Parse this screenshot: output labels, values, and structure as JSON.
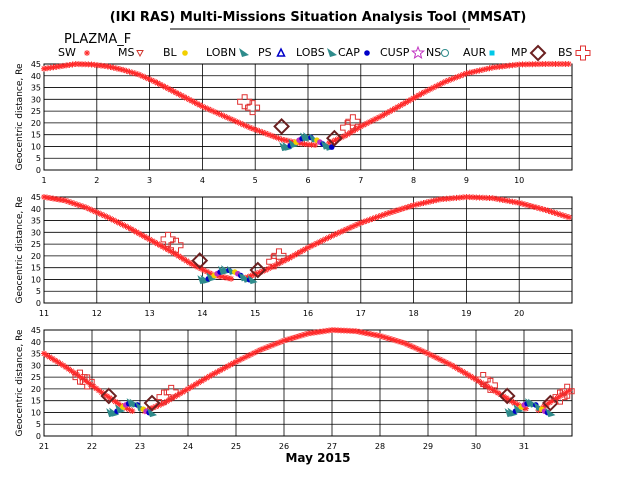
{
  "header": {
    "title": "(IKI RAS) Multi-Missions Situation Analysis Tool (MMSAT)",
    "subtitle": "PLAZMA_F",
    "footer": "May 2015"
  },
  "legend": [
    {
      "label": "SW",
      "symbol": "asterisk",
      "color": "#ff2a2a"
    },
    {
      "label": "MS",
      "symbol": "tri-down",
      "color": "#d0342c"
    },
    {
      "label": "BL",
      "symbol": "dot",
      "color": "#f2d000"
    },
    {
      "label": "LOBN",
      "symbol": "wedge",
      "color": "#2e8b8b"
    },
    {
      "label": "PS",
      "symbol": "tri-up",
      "color": "#0000c8"
    },
    {
      "label": "LOBS",
      "symbol": "wedge",
      "color": "#2e8b8b"
    },
    {
      "label": "CAP",
      "symbol": "dot",
      "color": "#0000c8"
    },
    {
      "label": "CUSP",
      "symbol": "star",
      "color": "#c030c0"
    },
    {
      "label": "NS",
      "symbol": "circle",
      "color": "#2e8b8b"
    },
    {
      "label": "AUR",
      "symbol": "square",
      "color": "#00c8e8"
    },
    {
      "label": "MP",
      "symbol": "diamond",
      "color": "#6b2020"
    },
    {
      "label": "BS",
      "symbol": "cross",
      "color": "#e03030"
    }
  ],
  "chart_data": [
    {
      "type": "scatter",
      "ylabel": "Geocentric distance, Re",
      "x_ticks": [
        "1",
        "2",
        "3",
        "4",
        "5",
        "6",
        "7",
        "8",
        "9",
        "10"
      ],
      "xlim": [
        1,
        11
      ],
      "y_ticks": [
        "0",
        "5",
        "10",
        "15",
        "20",
        "25",
        "30",
        "35",
        "40",
        "45"
      ],
      "ylim": [
        0,
        45
      ],
      "grid": true,
      "series": [
        {
          "x": [
            1.0,
            1.3,
            1.6,
            1.9,
            2.2,
            2.5,
            2.8,
            3.1,
            3.4,
            3.7,
            4.0,
            4.3,
            4.6,
            4.9,
            5.2,
            5.5,
            5.8,
            6.0,
            6.2
          ],
          "y": [
            43,
            44,
            45,
            44.8,
            44,
            42.5,
            40.5,
            37.5,
            34,
            30.5,
            27,
            24,
            21,
            18,
            15.5,
            13,
            11.5,
            10.8,
            10.5
          ]
        },
        {
          "x": [
            6.4,
            6.7,
            7.0,
            7.4,
            7.8,
            8.2,
            8.6,
            9.0,
            9.5,
            10.0,
            10.5,
            11.0
          ],
          "y": [
            11.5,
            14.5,
            18.5,
            23,
            28,
            33,
            37.5,
            41,
            43.5,
            44.8,
            45,
            45
          ]
        }
      ],
      "boundary_marks": [
        {
          "symbol": "cross",
          "x": 4.8,
          "y": 29
        },
        {
          "symbol": "cross",
          "x": 4.95,
          "y": 26.5
        },
        {
          "symbol": "diamond",
          "x": 5.5,
          "y": 18.5
        },
        {
          "symbol": "diamond",
          "x": 6.5,
          "y": 13.5
        },
        {
          "symbol": "cross",
          "x": 6.75,
          "y": 18
        },
        {
          "symbol": "cross",
          "x": 6.85,
          "y": 20.5
        }
      ],
      "dense_segment": {
        "x": [
          5.55,
          6.45
        ],
        "y_mid": 11
      }
    },
    {
      "type": "scatter",
      "ylabel": "Geocentric distance, Re",
      "x_ticks": [
        "11",
        "12",
        "13",
        "14",
        "15",
        "16",
        "17",
        "18",
        "19",
        "20"
      ],
      "xlim": [
        11,
        21
      ],
      "y_ticks": [
        "0",
        "5",
        "10",
        "15",
        "20",
        "25",
        "30",
        "35",
        "40",
        "45"
      ],
      "ylim": [
        0,
        45
      ],
      "grid": true,
      "series": [
        {
          "x": [
            11.0,
            11.4,
            11.8,
            12.2,
            12.6,
            13.0,
            13.4,
            13.8,
            14.2,
            14.6
          ],
          "y": [
            45,
            43.5,
            40.5,
            36.5,
            32,
            27,
            22,
            16.5,
            12,
            10
          ]
        },
        {
          "x": [
            14.8,
            15.2,
            15.6,
            16.0,
            16.5,
            17.0,
            17.5,
            18.0,
            18.5,
            19.0,
            19.5,
            20.0,
            20.5,
            21.0
          ],
          "y": [
            10.5,
            14,
            18.5,
            23.5,
            29,
            34,
            38,
            41.5,
            44,
            45,
            44.5,
            42.5,
            39.5,
            36
          ]
        }
      ],
      "boundary_marks": [
        {
          "symbol": "cross",
          "x": 13.35,
          "y": 27
        },
        {
          "symbol": "cross",
          "x": 13.5,
          "y": 24.5
        },
        {
          "symbol": "diamond",
          "x": 13.95,
          "y": 18
        },
        {
          "symbol": "diamond",
          "x": 15.05,
          "y": 14
        },
        {
          "symbol": "cross",
          "x": 15.35,
          "y": 17.5
        },
        {
          "symbol": "cross",
          "x": 15.45,
          "y": 20
        }
      ],
      "dense_segment": {
        "x": [
          14.0,
          14.95
        ],
        "y_mid": 11
      }
    },
    {
      "type": "scatter",
      "ylabel": "Geocentric distance, Re",
      "x_ticks": [
        "21",
        "22",
        "23",
        "24",
        "25",
        "26",
        "27",
        "28",
        "29",
        "30",
        "31"
      ],
      "xlim": [
        21,
        32
      ],
      "y_ticks": [
        "0",
        "5",
        "10",
        "15",
        "20",
        "25",
        "30",
        "35",
        "40",
        "45"
      ],
      "ylim": [
        0,
        45
      ],
      "grid": true,
      "series": [
        {
          "x": [
            21.0,
            21.4,
            21.8,
            22.2,
            22.6,
            22.9
          ],
          "y": [
            35,
            30,
            24.5,
            18.5,
            13,
            10
          ]
        },
        {
          "x": [
            23.1,
            23.5,
            24.0,
            24.5,
            25.0,
            25.5,
            26.0,
            26.5,
            27.0,
            27.5,
            28.0,
            28.5,
            29.0,
            29.5,
            30.0,
            30.4,
            30.8,
            31.1
          ],
          "y": [
            10.5,
            14,
            20,
            26,
            31.5,
            36.5,
            40.5,
            43.5,
            45,
            44.5,
            42.5,
            39.5,
            35,
            30,
            24,
            19,
            14,
            11
          ]
        },
        {
          "x": [
            31.3,
            31.6,
            32.0
          ],
          "y": [
            11,
            15,
            20
          ]
        }
      ],
      "boundary_marks": [
        {
          "symbol": "cross",
          "x": 21.75,
          "y": 25
        },
        {
          "symbol": "cross",
          "x": 21.9,
          "y": 23
        },
        {
          "symbol": "diamond",
          "x": 22.35,
          "y": 17
        },
        {
          "symbol": "diamond",
          "x": 23.25,
          "y": 14
        },
        {
          "symbol": "cross",
          "x": 23.5,
          "y": 16.5
        },
        {
          "symbol": "cross",
          "x": 23.65,
          "y": 18.5
        },
        {
          "symbol": "cross",
          "x": 30.15,
          "y": 24
        },
        {
          "symbol": "cross",
          "x": 30.3,
          "y": 21.5
        },
        {
          "symbol": "diamond",
          "x": 30.65,
          "y": 17
        },
        {
          "symbol": "diamond",
          "x": 31.55,
          "y": 14
        },
        {
          "symbol": "cross",
          "x": 31.75,
          "y": 16.5
        },
        {
          "symbol": "cross",
          "x": 31.9,
          "y": 19
        }
      ],
      "dense_segments": [
        {
          "x": [
            22.4,
            23.25
          ],
          "y_mid": 11
        },
        {
          "x": [
            30.7,
            31.55
          ],
          "y_mid": 11
        }
      ]
    }
  ]
}
